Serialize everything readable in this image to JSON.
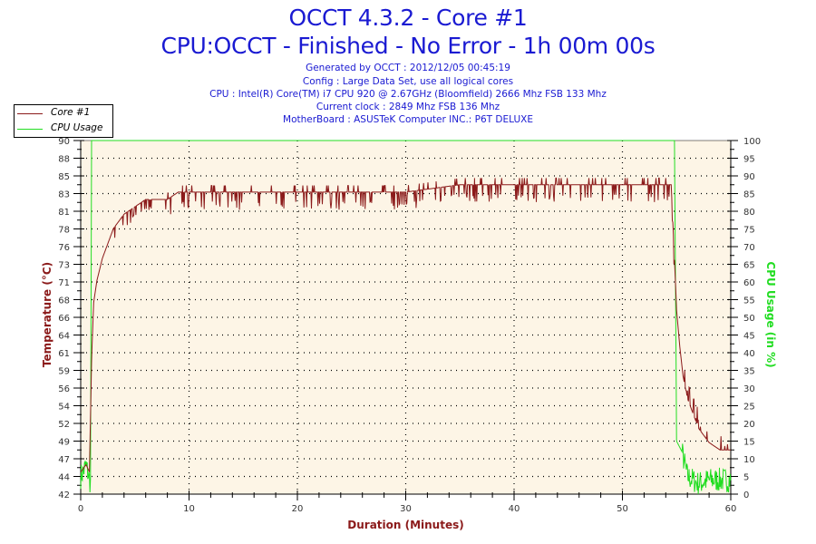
{
  "header": {
    "title": "OCCT 4.3.2 - Core #1",
    "subtitle": "CPU:OCCT - Finished - No Error - 1h 00m 00s",
    "info_lines": [
      "Generated by OCCT : 2012/12/05 00:45:19",
      "Config : Large Data Set, use all logical cores",
      "CPU : Intel(R) Core(TM) i7 CPU 920 @ 2.67GHz (Bloomfield) 2666 Mhz FSB 133 Mhz",
      "Current clock : 2849 Mhz FSB 136 Mhz",
      "MotherBoard : ASUSTeK Computer INC.: P6T DELUXE"
    ]
  },
  "legend": [
    {
      "label": "Core #1",
      "color": "#8b1a1a"
    },
    {
      "label": "CPU Usage",
      "color": "#22dd22"
    }
  ],
  "colors": {
    "plot_bg": "#fdf5e6",
    "temp": "#8b1a1a",
    "usage": "#22dd22",
    "title": "#1a1ad2"
  },
  "chart_data": {
    "type": "line",
    "title": "OCCT 4.3.2 - Core #1",
    "subtitle": "CPU:OCCT - Finished - No Error - 1h 00m 00s",
    "xlabel": "Duration (Minutes)",
    "ylabel": "Temperature (°C)",
    "y2label": "CPU Usage (in %)",
    "xlim": [
      0,
      60
    ],
    "ylim": [
      42,
      90
    ],
    "y2lim": [
      0,
      100
    ],
    "x_ticks": [
      0,
      10,
      20,
      30,
      40,
      50,
      60
    ],
    "y_ticks": [
      42,
      44,
      47,
      49,
      52,
      54,
      56,
      59,
      61,
      64,
      66,
      68,
      71,
      73,
      76,
      78,
      81,
      83,
      85,
      88,
      90
    ],
    "y2_ticks": [
      0,
      5,
      10,
      15,
      20,
      25,
      30,
      35,
      40,
      45,
      50,
      55,
      60,
      65,
      70,
      75,
      80,
      85,
      90,
      95,
      100
    ],
    "grid": true,
    "legend_position": "top-left",
    "series": [
      {
        "name": "Core #1",
        "axis": "left",
        "x": [
          0,
          0.5,
          0.8,
          1.0,
          1.2,
          1.5,
          2.0,
          2.5,
          3.0,
          3.5,
          4.0,
          5.0,
          6.0,
          7.0,
          8.0,
          9.0,
          10,
          15,
          20,
          25,
          30,
          35,
          40,
          45,
          50,
          54.5,
          55.0,
          55.3,
          55.6,
          56,
          57,
          58,
          59,
          60
        ],
        "values": [
          45,
          46,
          45,
          60,
          68,
          71,
          74,
          76,
          78,
          79,
          80,
          81,
          82,
          82,
          82,
          83,
          83,
          83,
          83,
          83,
          83,
          84,
          84,
          84,
          84,
          84,
          67,
          62,
          58,
          55,
          51,
          49,
          48,
          48
        ]
      },
      {
        "name": "CPU Usage",
        "axis": "right",
        "x": [
          0,
          0.5,
          0.9,
          1.0,
          54.8,
          55.0,
          55.5,
          56,
          57,
          58,
          59,
          60
        ],
        "values": [
          5,
          8,
          3,
          100,
          100,
          15,
          12,
          5,
          3,
          4,
          4,
          4
        ]
      }
    ]
  }
}
